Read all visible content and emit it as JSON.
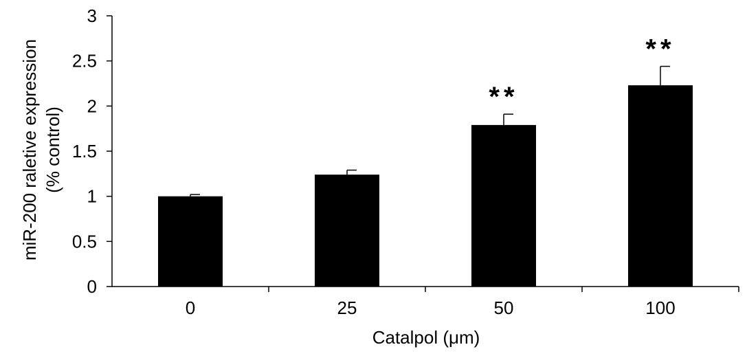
{
  "chart_data": {
    "type": "bar",
    "categories": [
      "0",
      "25",
      "50",
      "100"
    ],
    "values": [
      1.0,
      1.24,
      1.79,
      2.23
    ],
    "error_bars": [
      0.02,
      0.05,
      0.12,
      0.21
    ],
    "significance": [
      "",
      "",
      "**",
      "**"
    ],
    "xlabel": "Catalpol (μm)",
    "ylabel_line1": "miR-200 raletive expression",
    "ylabel_line2": "(% control)",
    "ylim": [
      0,
      3
    ],
    "yticks": [
      0,
      0.5,
      1,
      1.5,
      2,
      2.5,
      3
    ],
    "ytick_labels": [
      "0",
      "0.5",
      "1",
      "1.5",
      "2",
      "2.5",
      "3"
    ],
    "grid": false,
    "bar_color": "#000000"
  }
}
